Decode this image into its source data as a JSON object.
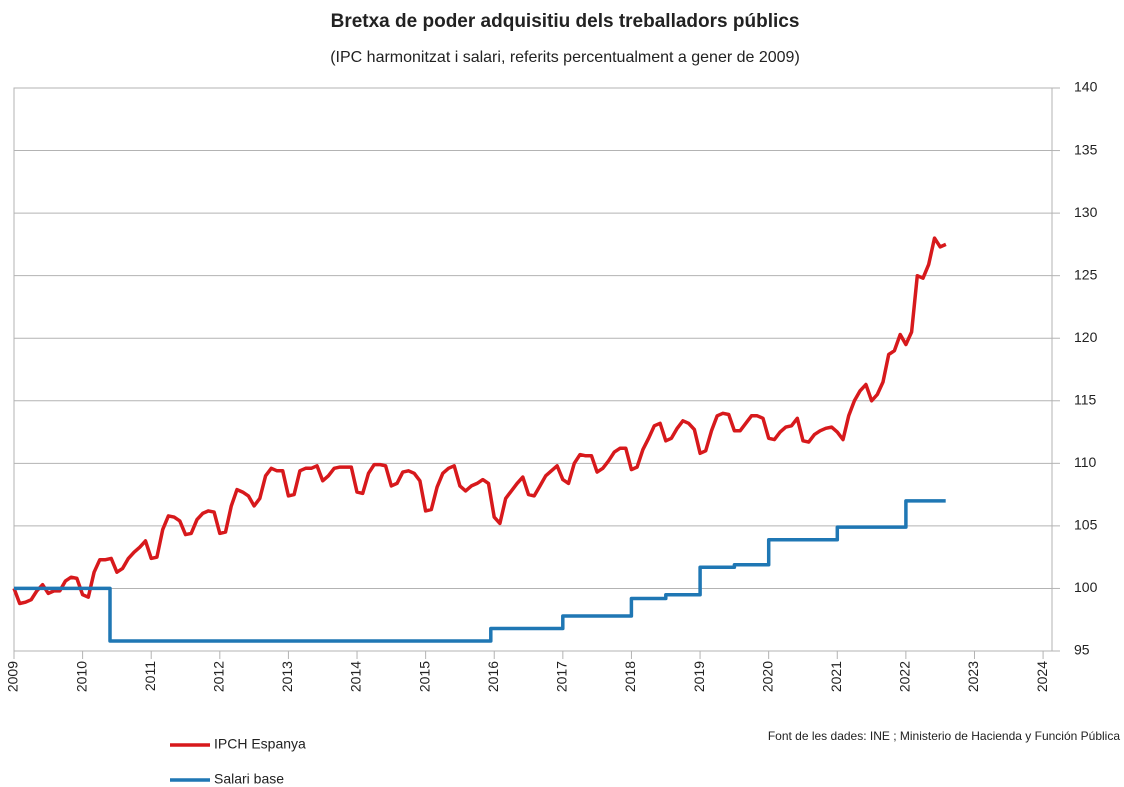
{
  "chart_data": {
    "type": "line",
    "title": "Bretxa de poder adquisitiu dels treballadors públics",
    "subtitle": "(IPC harmonitzat i salari, referits percentualment a gener de 2009)",
    "source": "Font de les dades: INE ; Ministerio de Hacienda y Función Pública",
    "xlim": [
      2009,
      2024.13
    ],
    "xticks": [
      2009,
      2010,
      2011,
      2012,
      2013,
      2014,
      2015,
      2016,
      2017,
      2018,
      2019,
      2020,
      2021,
      2022,
      2023,
      2024
    ],
    "ylim": [
      95,
      140
    ],
    "yticks": [
      95,
      100,
      105,
      110,
      115,
      120,
      125,
      130,
      135,
      140
    ],
    "grid": true,
    "legend": "bottom-left",
    "series": [
      {
        "name": "IPCH Espanya",
        "color": "#d7191c",
        "x": [
          2009,
          2009.083,
          2009.167,
          2009.25,
          2009.333,
          2009.417,
          2009.5,
          2009.583,
          2009.667,
          2009.75,
          2009.833,
          2009.917,
          2010,
          2010.083,
          2010.167,
          2010.25,
          2010.333,
          2010.417,
          2010.5,
          2010.583,
          2010.667,
          2010.75,
          2010.833,
          2010.917,
          2011,
          2011.083,
          2011.167,
          2011.25,
          2011.333,
          2011.417,
          2011.5,
          2011.583,
          2011.667,
          2011.75,
          2011.833,
          2011.917,
          2012,
          2012.083,
          2012.167,
          2012.25,
          2012.333,
          2012.417,
          2012.5,
          2012.583,
          2012.667,
          2012.75,
          2012.833,
          2012.917,
          2013,
          2013.083,
          2013.167,
          2013.25,
          2013.333,
          2013.417,
          2013.5,
          2013.583,
          2013.667,
          2013.75,
          2013.833,
          2013.917,
          2014,
          2014.083,
          2014.167,
          2014.25,
          2014.333,
          2014.417,
          2014.5,
          2014.583,
          2014.667,
          2014.75,
          2014.833,
          2014.917,
          2015,
          2015.083,
          2015.167,
          2015.25,
          2015.333,
          2015.417,
          2015.5,
          2015.583,
          2015.667,
          2015.75,
          2015.833,
          2015.917,
          2016,
          2016.083,
          2016.167,
          2016.25,
          2016.333,
          2016.417,
          2016.5,
          2016.583,
          2016.667,
          2016.75,
          2016.833,
          2016.917,
          2017,
          2017.083,
          2017.167,
          2017.25,
          2017.333,
          2017.417,
          2017.5,
          2017.583,
          2017.667,
          2017.75,
          2017.833,
          2017.917,
          2018,
          2018.083,
          2018.167,
          2018.25,
          2018.333,
          2018.417,
          2018.5,
          2018.583,
          2018.667,
          2018.75,
          2018.833,
          2018.917,
          2019,
          2019.083,
          2019.167,
          2019.25,
          2019.333,
          2019.417,
          2019.5,
          2019.583,
          2019.667,
          2019.75,
          2019.833,
          2019.917,
          2020,
          2020.083,
          2020.167,
          2020.25,
          2020.333,
          2020.417,
          2020.5,
          2020.583,
          2020.667,
          2020.75,
          2020.833,
          2020.917,
          2021,
          2021.083,
          2021.167,
          2021.25,
          2021.333,
          2021.417,
          2021.5,
          2021.583,
          2021.667,
          2021.75,
          2021.833,
          2021.917,
          2022,
          2022.083,
          2022.167,
          2022.25,
          2022.333,
          2022.417,
          2022.5,
          2022.583
        ],
        "values": [
          100,
          98.8,
          98.9,
          99.1,
          99.8,
          100.3,
          99.6,
          99.8,
          99.8,
          100.6,
          100.9,
          100.8,
          99.5,
          99.3,
          101.3,
          102.3,
          102.3,
          102.4,
          101.3,
          101.6,
          102.4,
          102.9,
          103.3,
          103.8,
          102.4,
          102.5,
          104.7,
          105.8,
          105.7,
          105.4,
          104.3,
          104.4,
          105.5,
          106.0,
          106.2,
          106.1,
          104.4,
          104.5,
          106.6,
          107.9,
          107.7,
          107.4,
          106.6,
          107.2,
          109.0,
          109.6,
          109.4,
          109.4,
          107.4,
          107.5,
          109.4,
          109.6,
          109.6,
          109.8,
          108.6,
          109.0,
          109.6,
          109.7,
          109.7,
          109.7,
          107.7,
          107.6,
          109.2,
          109.9,
          109.9,
          109.8,
          108.2,
          108.4,
          109.3,
          109.4,
          109.2,
          108.6,
          106.2,
          106.3,
          108.1,
          109.2,
          109.6,
          109.8,
          108.2,
          107.8,
          108.2,
          108.4,
          108.7,
          108.4,
          105.7,
          105.2,
          107.2,
          107.8,
          108.4,
          108.9,
          107.5,
          107.4,
          108.2,
          109.0,
          109.4,
          109.8,
          108.7,
          108.4,
          110.0,
          110.7,
          110.6,
          110.6,
          109.3,
          109.6,
          110.2,
          110.9,
          111.2,
          111.2,
          109.5,
          109.7,
          111.1,
          112.0,
          113.0,
          113.2,
          111.8,
          112.0,
          112.8,
          113.4,
          113.2,
          112.7,
          110.8,
          111.0,
          112.6,
          113.8,
          114.0,
          113.9,
          112.6,
          112.6,
          113.2,
          113.8,
          113.8,
          113.6,
          112.0,
          111.9,
          112.5,
          112.9,
          113.0,
          113.6,
          111.8,
          111.7,
          112.3,
          112.6,
          112.8,
          112.9,
          112.5,
          111.9,
          113.8,
          115.0,
          115.8,
          116.3,
          115.0,
          115.5,
          116.5,
          118.7,
          119.0,
          120.3,
          119.5,
          120.5,
          125.0,
          124.8,
          125.9,
          128.0,
          127.3,
          127.5
        ]
      },
      {
        "name": "Salari base",
        "color": "#1f77b4",
        "x": [
          2009,
          2010.4,
          2010.4,
          2015.95,
          2015.95,
          2017,
          2017,
          2018,
          2018,
          2018.5,
          2018.5,
          2019,
          2019,
          2019.5,
          2019.5,
          2020,
          2020,
          2021,
          2021,
          2022,
          2022,
          2022.58
        ],
        "values": [
          100,
          100,
          95.8,
          95.8,
          96.8,
          96.8,
          97.8,
          97.8,
          99.2,
          99.2,
          99.5,
          99.5,
          101.7,
          101.7,
          101.9,
          101.9,
          103.9,
          103.9,
          104.9,
          104.9,
          107,
          107
        ]
      }
    ]
  }
}
